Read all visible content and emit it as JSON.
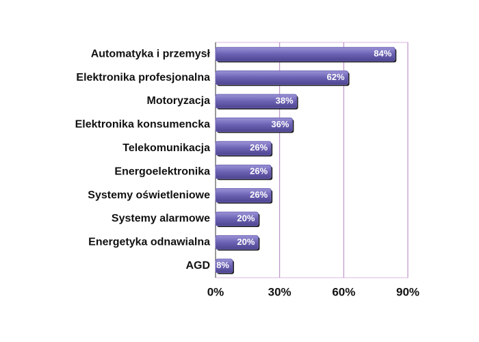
{
  "chart_data": {
    "type": "barh",
    "categories": [
      "Automatyka i przemysł",
      "Elektronika profesjonalna",
      "Motoryzacja",
      "Elektronika konsumencka",
      "Telekomunikacja",
      "Energoelektronika",
      "Systemy oświetleniowe",
      "Systemy alarmowe",
      "Energetyka odnawialna",
      "AGD"
    ],
    "values": [
      84,
      62,
      38,
      36,
      26,
      26,
      26,
      20,
      20,
      8
    ],
    "value_labels": [
      "84%",
      "62%",
      "38%",
      "36%",
      "26%",
      "26%",
      "26%",
      "20%",
      "20%",
      "8%"
    ],
    "color": "#6b62b3",
    "xlim": [
      0,
      90
    ],
    "xticks": [
      {
        "value": 0,
        "label": "0%"
      },
      {
        "value": 30,
        "label": "30%"
      },
      {
        "value": 60,
        "label": "60%"
      },
      {
        "value": 90,
        "label": "90%"
      }
    ],
    "grid": true
  }
}
